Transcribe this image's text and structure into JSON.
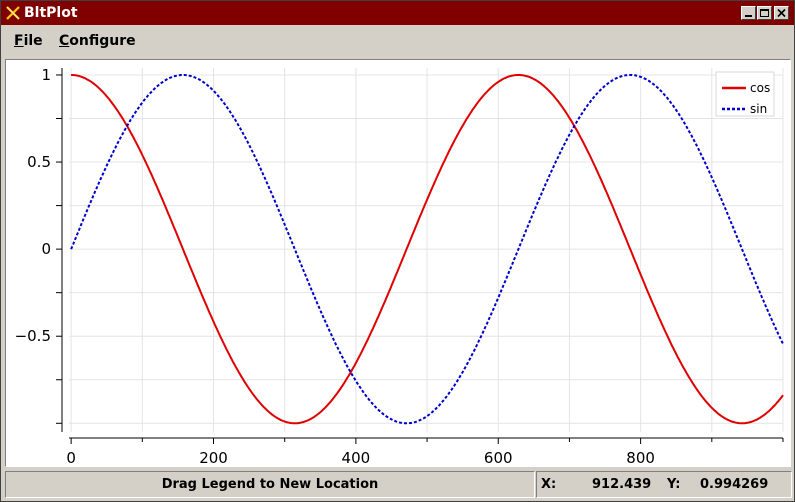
{
  "window": {
    "title": "BltPlot",
    "controls": [
      "minimize",
      "maximize",
      "close"
    ]
  },
  "menu": {
    "file_label": "File",
    "configure_label": "Configure"
  },
  "status": {
    "message": "Drag Legend to New Location",
    "x_label": "X:",
    "x_value": "912.439",
    "y_label": "Y:",
    "y_value": "0.994269"
  },
  "chart_data": {
    "type": "line",
    "title": "",
    "xlabel": "",
    "ylabel": "",
    "xlim": [
      -3,
      1000
    ],
    "ylim": [
      -1.05,
      1.04
    ],
    "xticks": [
      0,
      200,
      400,
      600,
      800
    ],
    "xtick_labels": [
      "0",
      "200",
      "400",
      "600",
      "800"
    ],
    "yticks": [
      -0.5,
      0,
      0.5,
      1
    ],
    "ytick_labels": [
      "-0.5",
      "0",
      "0.5",
      "1"
    ],
    "grid": true,
    "legend": "top-right",
    "series": [
      {
        "name": "cos",
        "color": "#e00000",
        "style": "solid",
        "x_range": [
          0,
          1000
        ],
        "period": 628.3,
        "phase": 0
      },
      {
        "name": "sin",
        "color": "#0000cc",
        "style": "dashed",
        "x_range": [
          0,
          1000
        ],
        "period": 628.3,
        "phase": -1.5708
      }
    ]
  }
}
